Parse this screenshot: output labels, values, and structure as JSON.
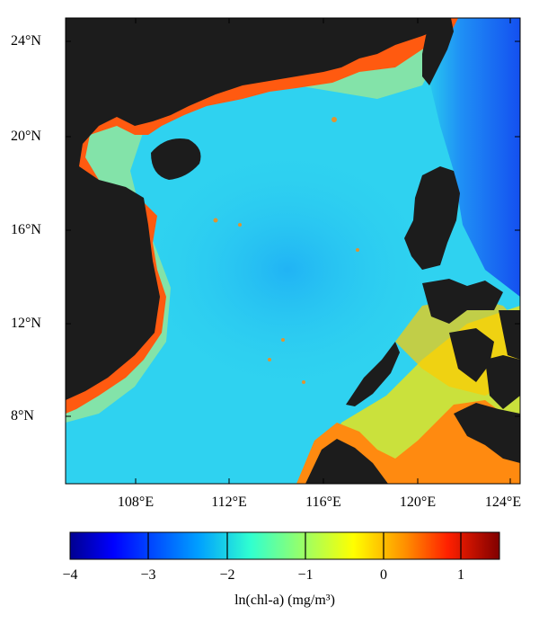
{
  "map": {
    "lat_labels": [
      "24°N",
      "20°N",
      "16°N",
      "12°N",
      "8°N"
    ],
    "lon_labels": [
      "108°E",
      "112°E",
      "116°E",
      "120°E",
      "124°E"
    ],
    "colors": {
      "land": "#1c1c1c",
      "coast_rim": "#ff3300",
      "inland_waters": "#ffe600",
      "open_sea": "#2fd2f0",
      "deep_center": "#1fb3f5",
      "pacific": "#1a5cf5"
    }
  },
  "colorbar": {
    "title": "ln(chl-a) (mg/m³)",
    "tick_labels": [
      "−4",
      "−3",
      "−2",
      "−1",
      "0",
      "1"
    ],
    "min": -4,
    "max": 1.5,
    "colormap": "jet"
  }
}
